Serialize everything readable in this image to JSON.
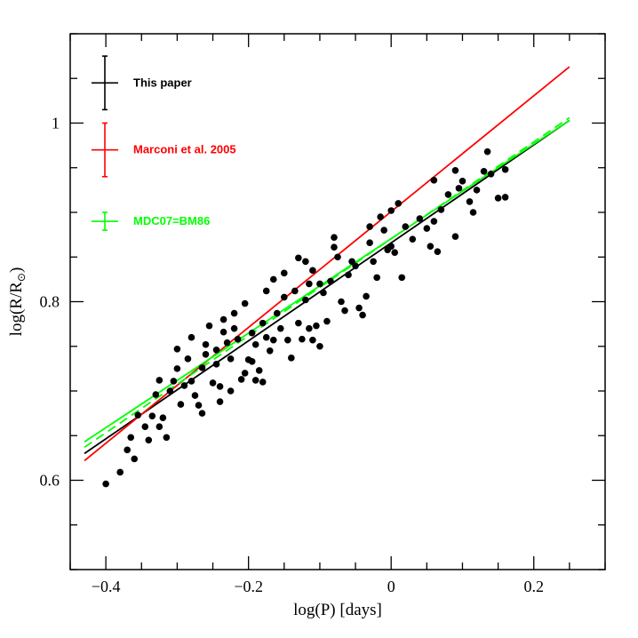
{
  "chart_data": {
    "type": "scatter",
    "xlabel": "log(P) [days]",
    "ylabel_main": "log(R/R",
    "ylabel_sub": "⊙",
    "ylabel_close": ")",
    "xlim": [
      -0.45,
      0.3
    ],
    "ylim": [
      0.5,
      1.1
    ],
    "xticks_major": [
      -0.4,
      -0.2,
      0,
      0.2
    ],
    "xtick_labels": [
      "−0.4",
      "−0.2",
      "0",
      "0.2"
    ],
    "yticks_major": [
      0.6,
      0.8,
      1.0
    ],
    "ytick_labels": [
      "0.6",
      "0.8",
      "1"
    ],
    "legend": [
      {
        "label": "This paper",
        "color": "#000000",
        "err_y": 1.045,
        "err_half": 0.03
      },
      {
        "label": "Marconi et al. 2005",
        "color": "#ff0000",
        "err_y": 0.97,
        "err_half": 0.03
      },
      {
        "label": "MDC07=BM86",
        "color": "#00ff00",
        "err_y": 0.89,
        "err_half": 0.01
      }
    ],
    "fits": [
      {
        "name": "This paper",
        "color": "#000000",
        "dashed": false,
        "x": [
          -0.43,
          0.25
        ],
        "y": [
          0.63,
          1.003
        ]
      },
      {
        "name": "Marconi et al. 2005",
        "color": "#ff0000",
        "dashed": false,
        "x": [
          -0.43,
          0.25
        ],
        "y": [
          0.622,
          1.063
        ]
      },
      {
        "name": "MDC07=BM86 (solid)",
        "color": "#00ff00",
        "dashed": false,
        "x": [
          -0.43,
          0.25
        ],
        "y": [
          0.643,
          1.003
        ]
      },
      {
        "name": "MDC07=BM86 (dashed)",
        "color": "#00ff00",
        "dashed": true,
        "x": [
          -0.43,
          0.25
        ],
        "y": [
          0.637,
          1.006
        ]
      }
    ],
    "points": [
      [
        -0.4,
        0.596
      ],
      [
        -0.38,
        0.609
      ],
      [
        -0.37,
        0.634
      ],
      [
        -0.365,
        0.648
      ],
      [
        -0.36,
        0.624
      ],
      [
        -0.355,
        0.673
      ],
      [
        -0.345,
        0.66
      ],
      [
        -0.34,
        0.645
      ],
      [
        -0.335,
        0.672
      ],
      [
        -0.33,
        0.696
      ],
      [
        -0.325,
        0.712
      ],
      [
        -0.325,
        0.66
      ],
      [
        -0.32,
        0.67
      ],
      [
        -0.315,
        0.648
      ],
      [
        -0.31,
        0.7
      ],
      [
        -0.305,
        0.711
      ],
      [
        -0.3,
        0.725
      ],
      [
        -0.3,
        0.747
      ],
      [
        -0.295,
        0.685
      ],
      [
        -0.29,
        0.706
      ],
      [
        -0.285,
        0.736
      ],
      [
        -0.28,
        0.76
      ],
      [
        -0.28,
        0.711
      ],
      [
        -0.275,
        0.695
      ],
      [
        -0.27,
        0.684
      ],
      [
        -0.265,
        0.675
      ],
      [
        -0.265,
        0.726
      ],
      [
        -0.26,
        0.752
      ],
      [
        -0.26,
        0.741
      ],
      [
        -0.255,
        0.773
      ],
      [
        -0.25,
        0.709
      ],
      [
        -0.245,
        0.746
      ],
      [
        -0.245,
        0.73
      ],
      [
        -0.24,
        0.688
      ],
      [
        -0.24,
        0.705
      ],
      [
        -0.235,
        0.78
      ],
      [
        -0.235,
        0.766
      ],
      [
        -0.23,
        0.754
      ],
      [
        -0.225,
        0.736
      ],
      [
        -0.225,
        0.7
      ],
      [
        -0.22,
        0.787
      ],
      [
        -0.22,
        0.77
      ],
      [
        -0.215,
        0.758
      ],
      [
        -0.21,
        0.713
      ],
      [
        -0.205,
        0.798
      ],
      [
        -0.205,
        0.72
      ],
      [
        -0.2,
        0.735
      ],
      [
        -0.195,
        0.765
      ],
      [
        -0.195,
        0.733
      ],
      [
        -0.19,
        0.712
      ],
      [
        -0.19,
        0.752
      ],
      [
        -0.185,
        0.723
      ],
      [
        -0.18,
        0.776
      ],
      [
        -0.18,
        0.71
      ],
      [
        -0.175,
        0.812
      ],
      [
        -0.175,
        0.76
      ],
      [
        -0.17,
        0.745
      ],
      [
        -0.165,
        0.825
      ],
      [
        -0.165,
        0.757
      ],
      [
        -0.16,
        0.787
      ],
      [
        -0.155,
        0.77
      ],
      [
        -0.15,
        0.832
      ],
      [
        -0.15,
        0.805
      ],
      [
        -0.145,
        0.757
      ],
      [
        -0.14,
        0.737
      ],
      [
        -0.135,
        0.812
      ],
      [
        -0.13,
        0.849
      ],
      [
        -0.13,
        0.776
      ],
      [
        -0.125,
        0.758
      ],
      [
        -0.12,
        0.845
      ],
      [
        -0.12,
        0.802
      ],
      [
        -0.115,
        0.82
      ],
      [
        -0.115,
        0.77
      ],
      [
        -0.11,
        0.835
      ],
      [
        -0.11,
        0.757
      ],
      [
        -0.105,
        0.773
      ],
      [
        -0.1,
        0.82
      ],
      [
        -0.1,
        0.75
      ],
      [
        -0.095,
        0.81
      ],
      [
        -0.09,
        0.778
      ],
      [
        -0.085,
        0.823
      ],
      [
        -0.08,
        0.872
      ],
      [
        -0.08,
        0.861
      ],
      [
        -0.075,
        0.85
      ],
      [
        -0.07,
        0.8
      ],
      [
        -0.065,
        0.79
      ],
      [
        -0.06,
        0.83
      ],
      [
        -0.055,
        0.845
      ],
      [
        -0.05,
        0.84
      ],
      [
        -0.045,
        0.793
      ],
      [
        -0.04,
        0.785
      ],
      [
        -0.035,
        0.806
      ],
      [
        -0.03,
        0.884
      ],
      [
        -0.03,
        0.866
      ],
      [
        -0.025,
        0.845
      ],
      [
        -0.02,
        0.827
      ],
      [
        -0.015,
        0.895
      ],
      [
        -0.01,
        0.88
      ],
      [
        -0.005,
        0.858
      ],
      [
        0.0,
        0.902
      ],
      [
        0.0,
        0.862
      ],
      [
        0.005,
        0.855
      ],
      [
        0.01,
        0.91
      ],
      [
        0.015,
        0.827
      ],
      [
        0.02,
        0.884
      ],
      [
        0.03,
        0.87
      ],
      [
        0.04,
        0.893
      ],
      [
        0.05,
        0.882
      ],
      [
        0.055,
        0.862
      ],
      [
        0.06,
        0.936
      ],
      [
        0.06,
        0.89
      ],
      [
        0.065,
        0.856
      ],
      [
        0.07,
        0.903
      ],
      [
        0.08,
        0.92
      ],
      [
        0.09,
        0.947
      ],
      [
        0.09,
        0.873
      ],
      [
        0.095,
        0.927
      ],
      [
        0.1,
        0.935
      ],
      [
        0.11,
        0.912
      ],
      [
        0.115,
        0.9
      ],
      [
        0.12,
        0.925
      ],
      [
        0.13,
        0.946
      ],
      [
        0.135,
        0.968
      ],
      [
        0.14,
        0.943
      ],
      [
        0.15,
        0.916
      ],
      [
        0.16,
        0.948
      ],
      [
        0.16,
        0.917
      ]
    ]
  }
}
